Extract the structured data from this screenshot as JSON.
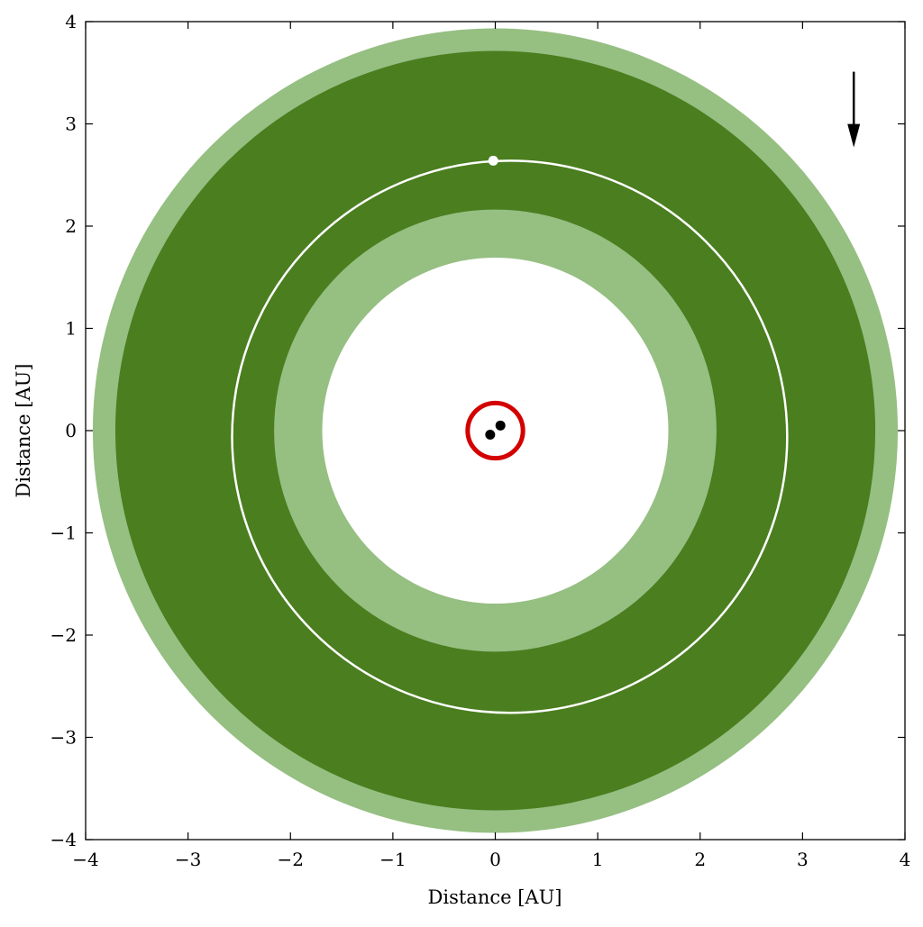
{
  "chart_data": {
    "type": "diagram-orbits",
    "xlabel": "Distance [AU]",
    "ylabel": "Distance [AU]",
    "xlim": [
      -4,
      4
    ],
    "ylim": [
      -4,
      4
    ],
    "xticks": [
      "−4",
      "−3",
      "−2",
      "−1",
      "0",
      "1",
      "2",
      "3",
      "4"
    ],
    "yticks": [
      "−4",
      "−3",
      "−2",
      "−1",
      "0",
      "1",
      "2",
      "3",
      "4"
    ],
    "tick_values": [
      -4,
      -3,
      -2,
      -1,
      0,
      1,
      2,
      3,
      4
    ],
    "grid": false,
    "zones": [
      {
        "kind": "optimistic-outer",
        "r_outer": 3.93,
        "color": "#96bf82"
      },
      {
        "kind": "conservative",
        "r_outer": 3.71,
        "color": "#4a7e1f"
      },
      {
        "kind": "optimistic-inner",
        "r_outer": 2.16,
        "color": "#96bf82"
      },
      {
        "kind": "inner-empty",
        "r_outer": 1.69,
        "color": "#ffffff"
      }
    ],
    "orbit": {
      "center": [
        0.14,
        -0.06
      ],
      "semi_major": 2.71,
      "semi_minor": 2.7,
      "color": "#ffffff"
    },
    "planet": {
      "x": -0.02,
      "y": 2.64,
      "color": "#ffffff"
    },
    "binary_orbit_circle": {
      "center": [
        0,
        0
      ],
      "radius": 0.27,
      "color": "#d40000"
    },
    "stars": [
      {
        "x": 0.05,
        "y": 0.05
      },
      {
        "x": -0.05,
        "y": -0.04
      }
    ],
    "direction_arrow": {
      "x": 3.5,
      "y_start": 3.51,
      "y_end": 2.77,
      "color": "#000000"
    }
  }
}
